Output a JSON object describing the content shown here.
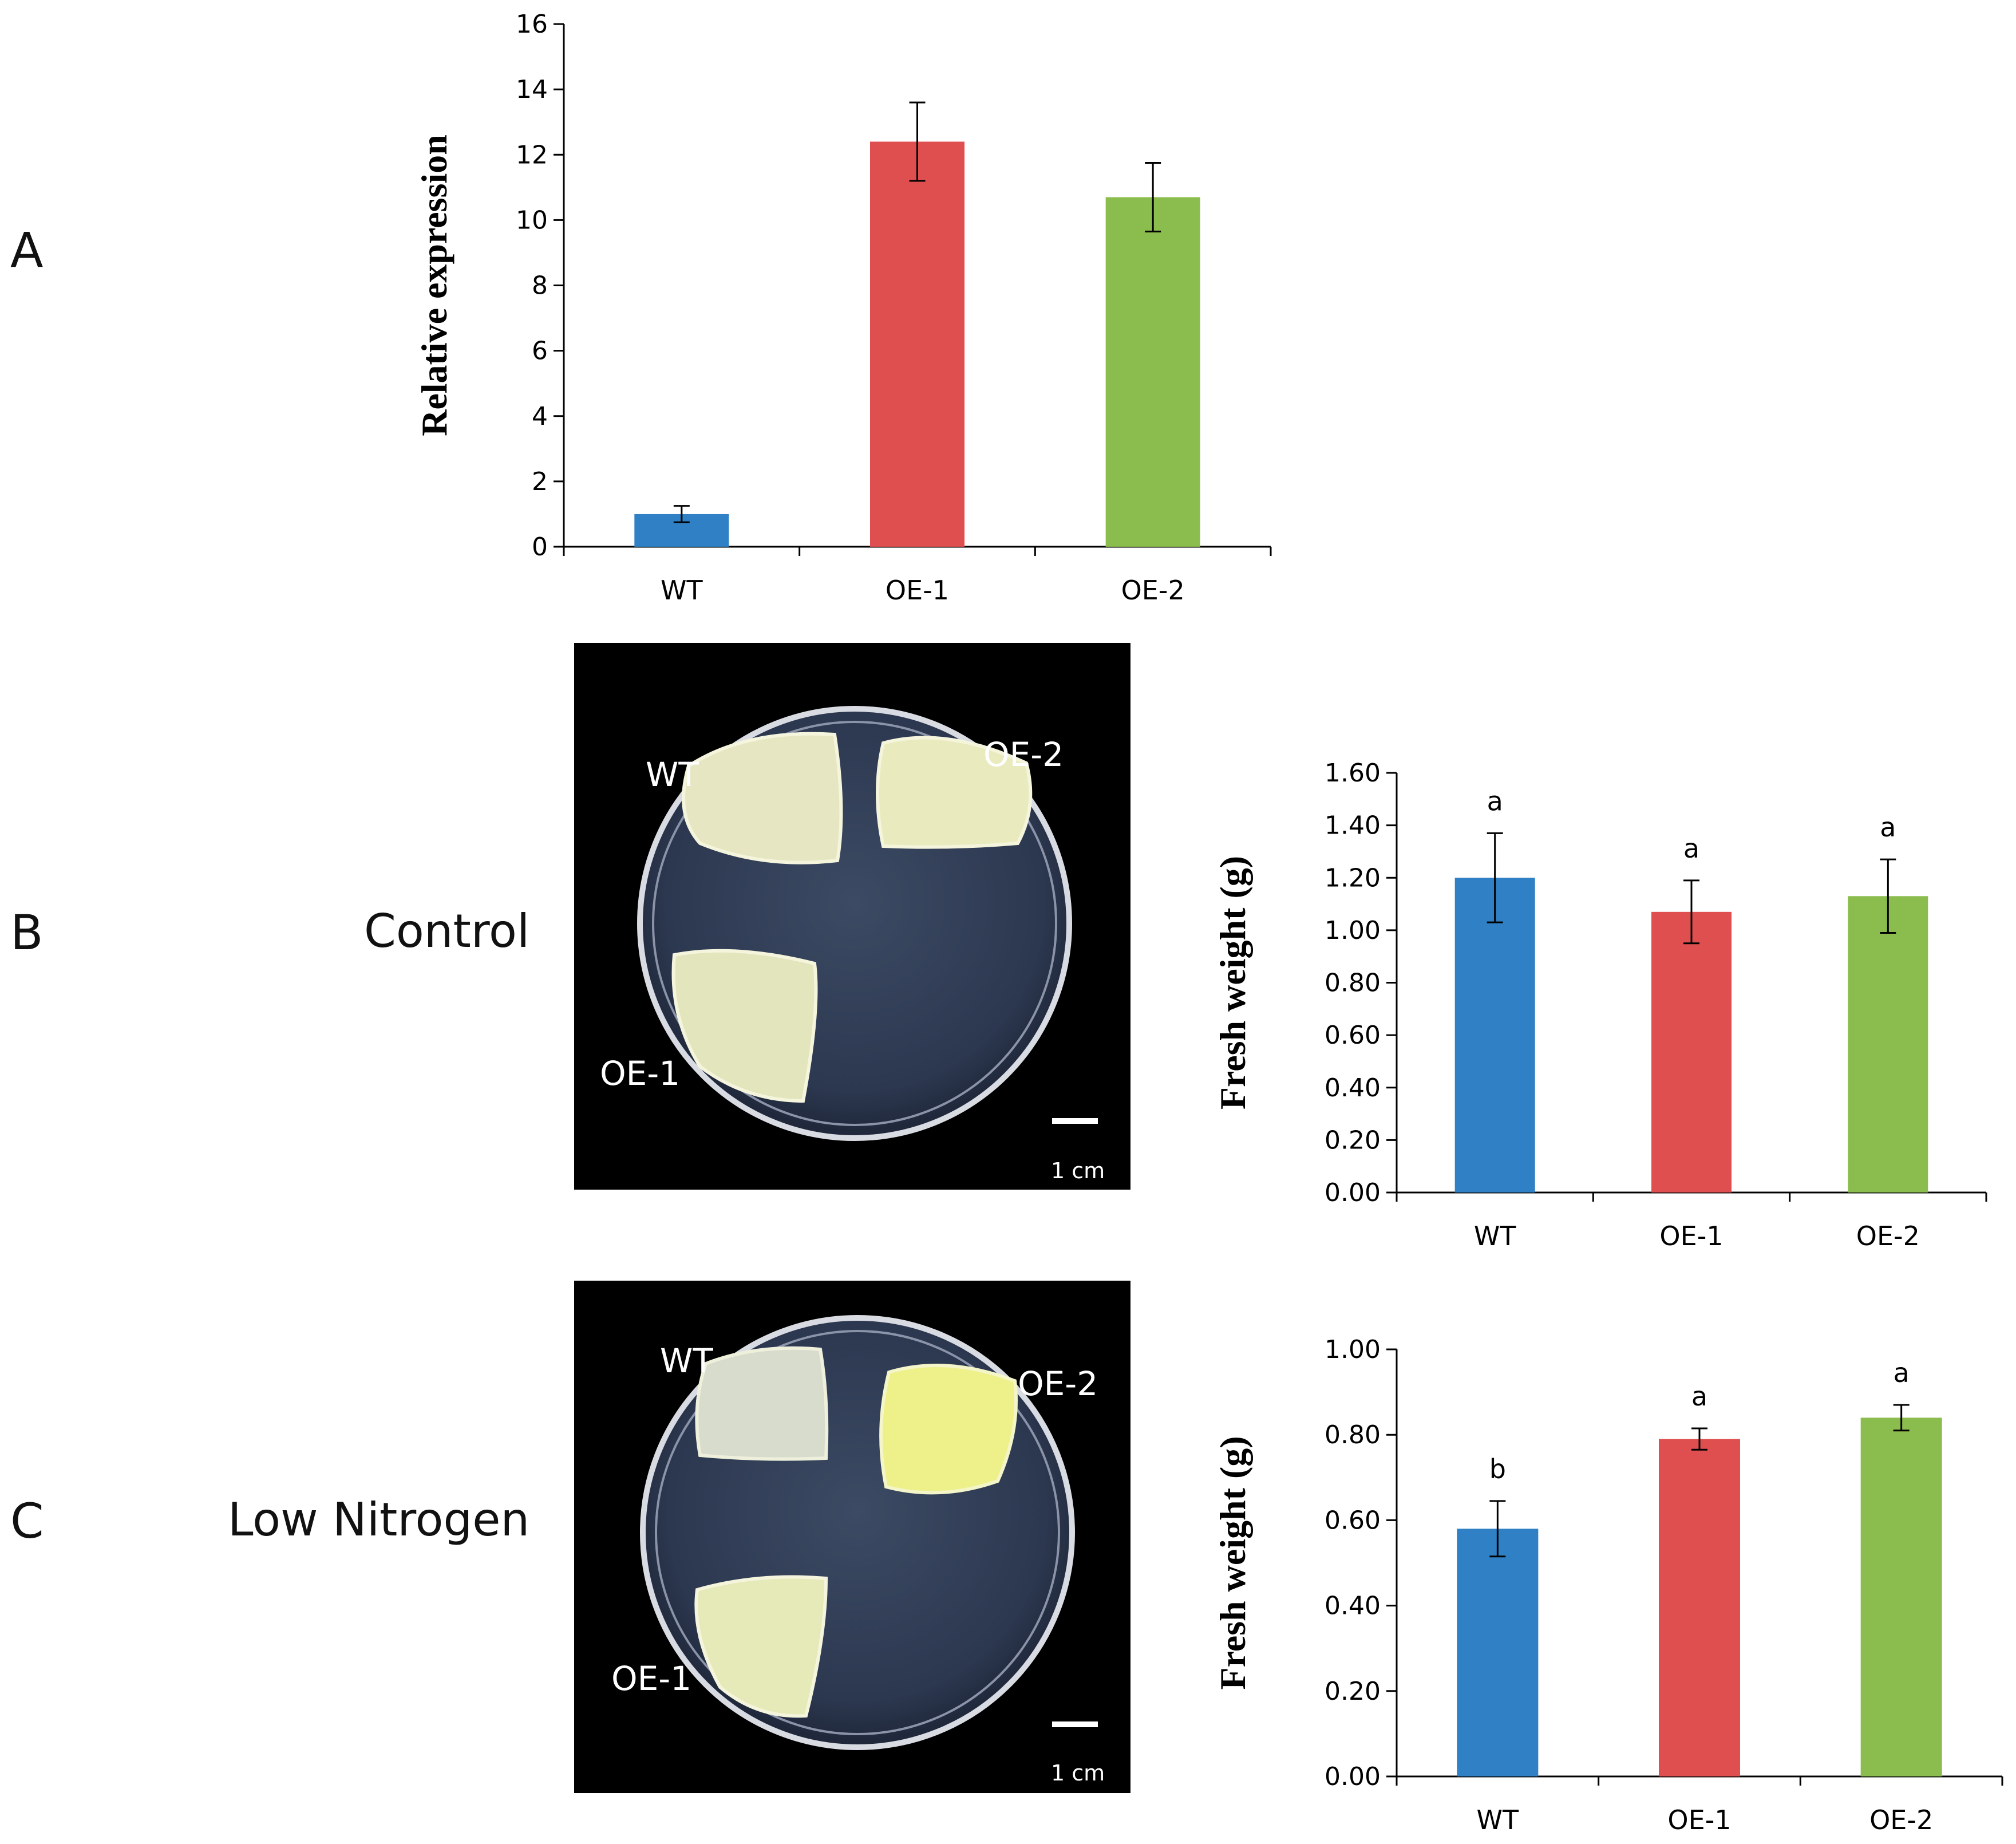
{
  "panels": {
    "a": {
      "letter": "A"
    },
    "b": {
      "letter": "B",
      "condition": "Control"
    },
    "c": {
      "letter": "C",
      "condition": "Low Nitrogen"
    }
  },
  "photos": {
    "control": {
      "labels": {
        "wt": "WT",
        "oe1": "OE-1",
        "oe2": "OE-2"
      },
      "scale_text": "1 cm"
    },
    "low_nitrogen": {
      "labels": {
        "wt": "WT",
        "oe1": "OE-1",
        "oe2": "OE-2"
      },
      "scale_text": "1 cm"
    }
  },
  "colors": {
    "wt": "#2f80c4",
    "oe1": "#e04f4f",
    "oe2": "#8bbd4e"
  },
  "chart_data": [
    {
      "id": "A",
      "type": "bar",
      "categories": [
        "WT",
        "OE-1",
        "OE-2"
      ],
      "values": [
        1.0,
        12.4,
        10.7
      ],
      "errors": [
        0.25,
        1.2,
        1.05
      ],
      "ylabel": "Relative expression",
      "ylim": [
        0,
        16
      ],
      "yticks": [
        "0",
        "2",
        "4",
        "6",
        "8",
        "10",
        "12",
        "14",
        "16"
      ],
      "significance": []
    },
    {
      "id": "B",
      "type": "bar",
      "categories": [
        "WT",
        "OE-1",
        "OE-2"
      ],
      "values": [
        1.2,
        1.07,
        1.13
      ],
      "errors": [
        0.17,
        0.12,
        0.14
      ],
      "ylabel": "Fresh weight (g)",
      "ylim": [
        0,
        1.6
      ],
      "yticks": [
        "0.00",
        "0.20",
        "0.40",
        "0.60",
        "0.80",
        "1.00",
        "1.20",
        "1.40",
        "1.60"
      ],
      "significance": [
        "a",
        "a",
        "a"
      ]
    },
    {
      "id": "C",
      "type": "bar",
      "categories": [
        "WT",
        "OE-1",
        "OE-2"
      ],
      "values": [
        0.58,
        0.79,
        0.84
      ],
      "errors": [
        0.065,
        0.025,
        0.03
      ],
      "ylabel": "Fresh weight (g)",
      "ylim": [
        0,
        1.0
      ],
      "yticks": [
        "0.00",
        "0.20",
        "0.40",
        "0.60",
        "0.80",
        "1.00"
      ],
      "significance": [
        "b",
        "a",
        "a"
      ]
    }
  ]
}
